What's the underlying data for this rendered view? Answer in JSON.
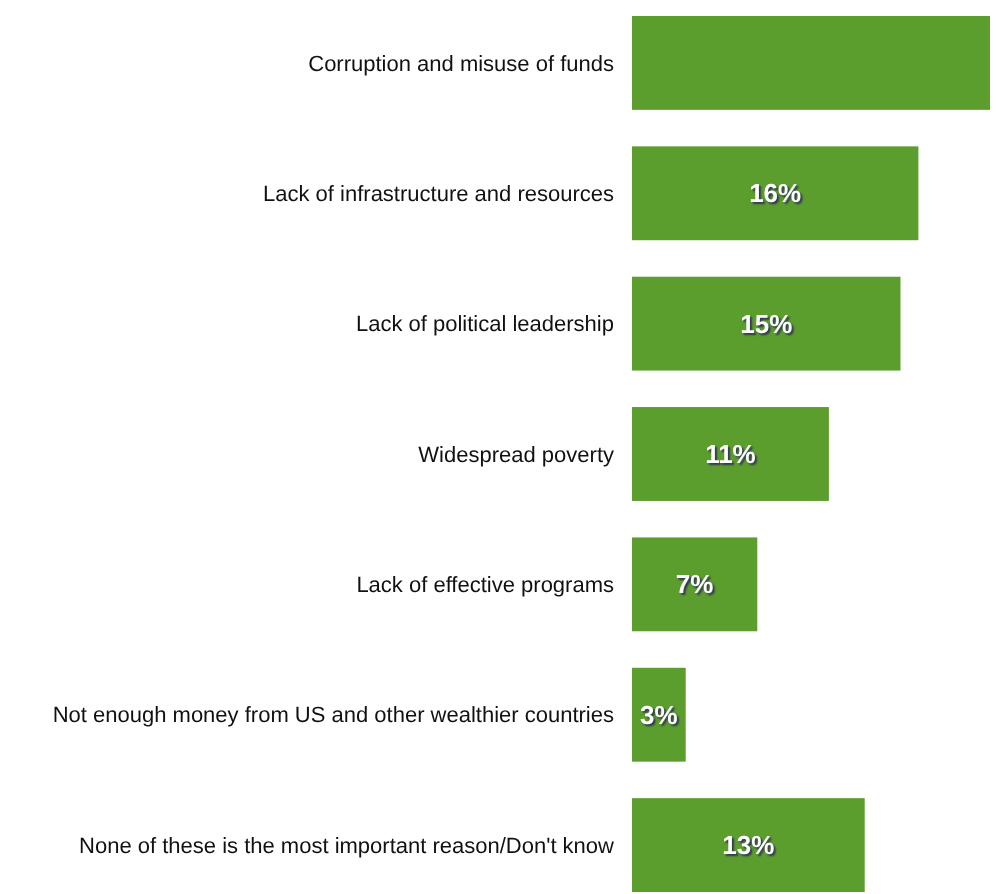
{
  "chart_data": {
    "type": "bar",
    "orientation": "horizontal",
    "relative": false,
    "categories": [
      "Corruption and misuse of funds",
      "Lack of infrastructure and resources",
      "Lack of political leadership",
      "Widespread poverty",
      "Lack of effective programs",
      "Not enough money from US and other wealthier countries",
      "None of these is the most important reason/Don't know"
    ],
    "values": [
      20,
      16,
      15,
      11,
      7,
      3,
      13
    ],
    "value_labels": [
      null,
      "16%",
      "15%",
      "11%",
      "7%",
      "3%",
      "13%"
    ],
    "color": "#5c9e2d"
  }
}
